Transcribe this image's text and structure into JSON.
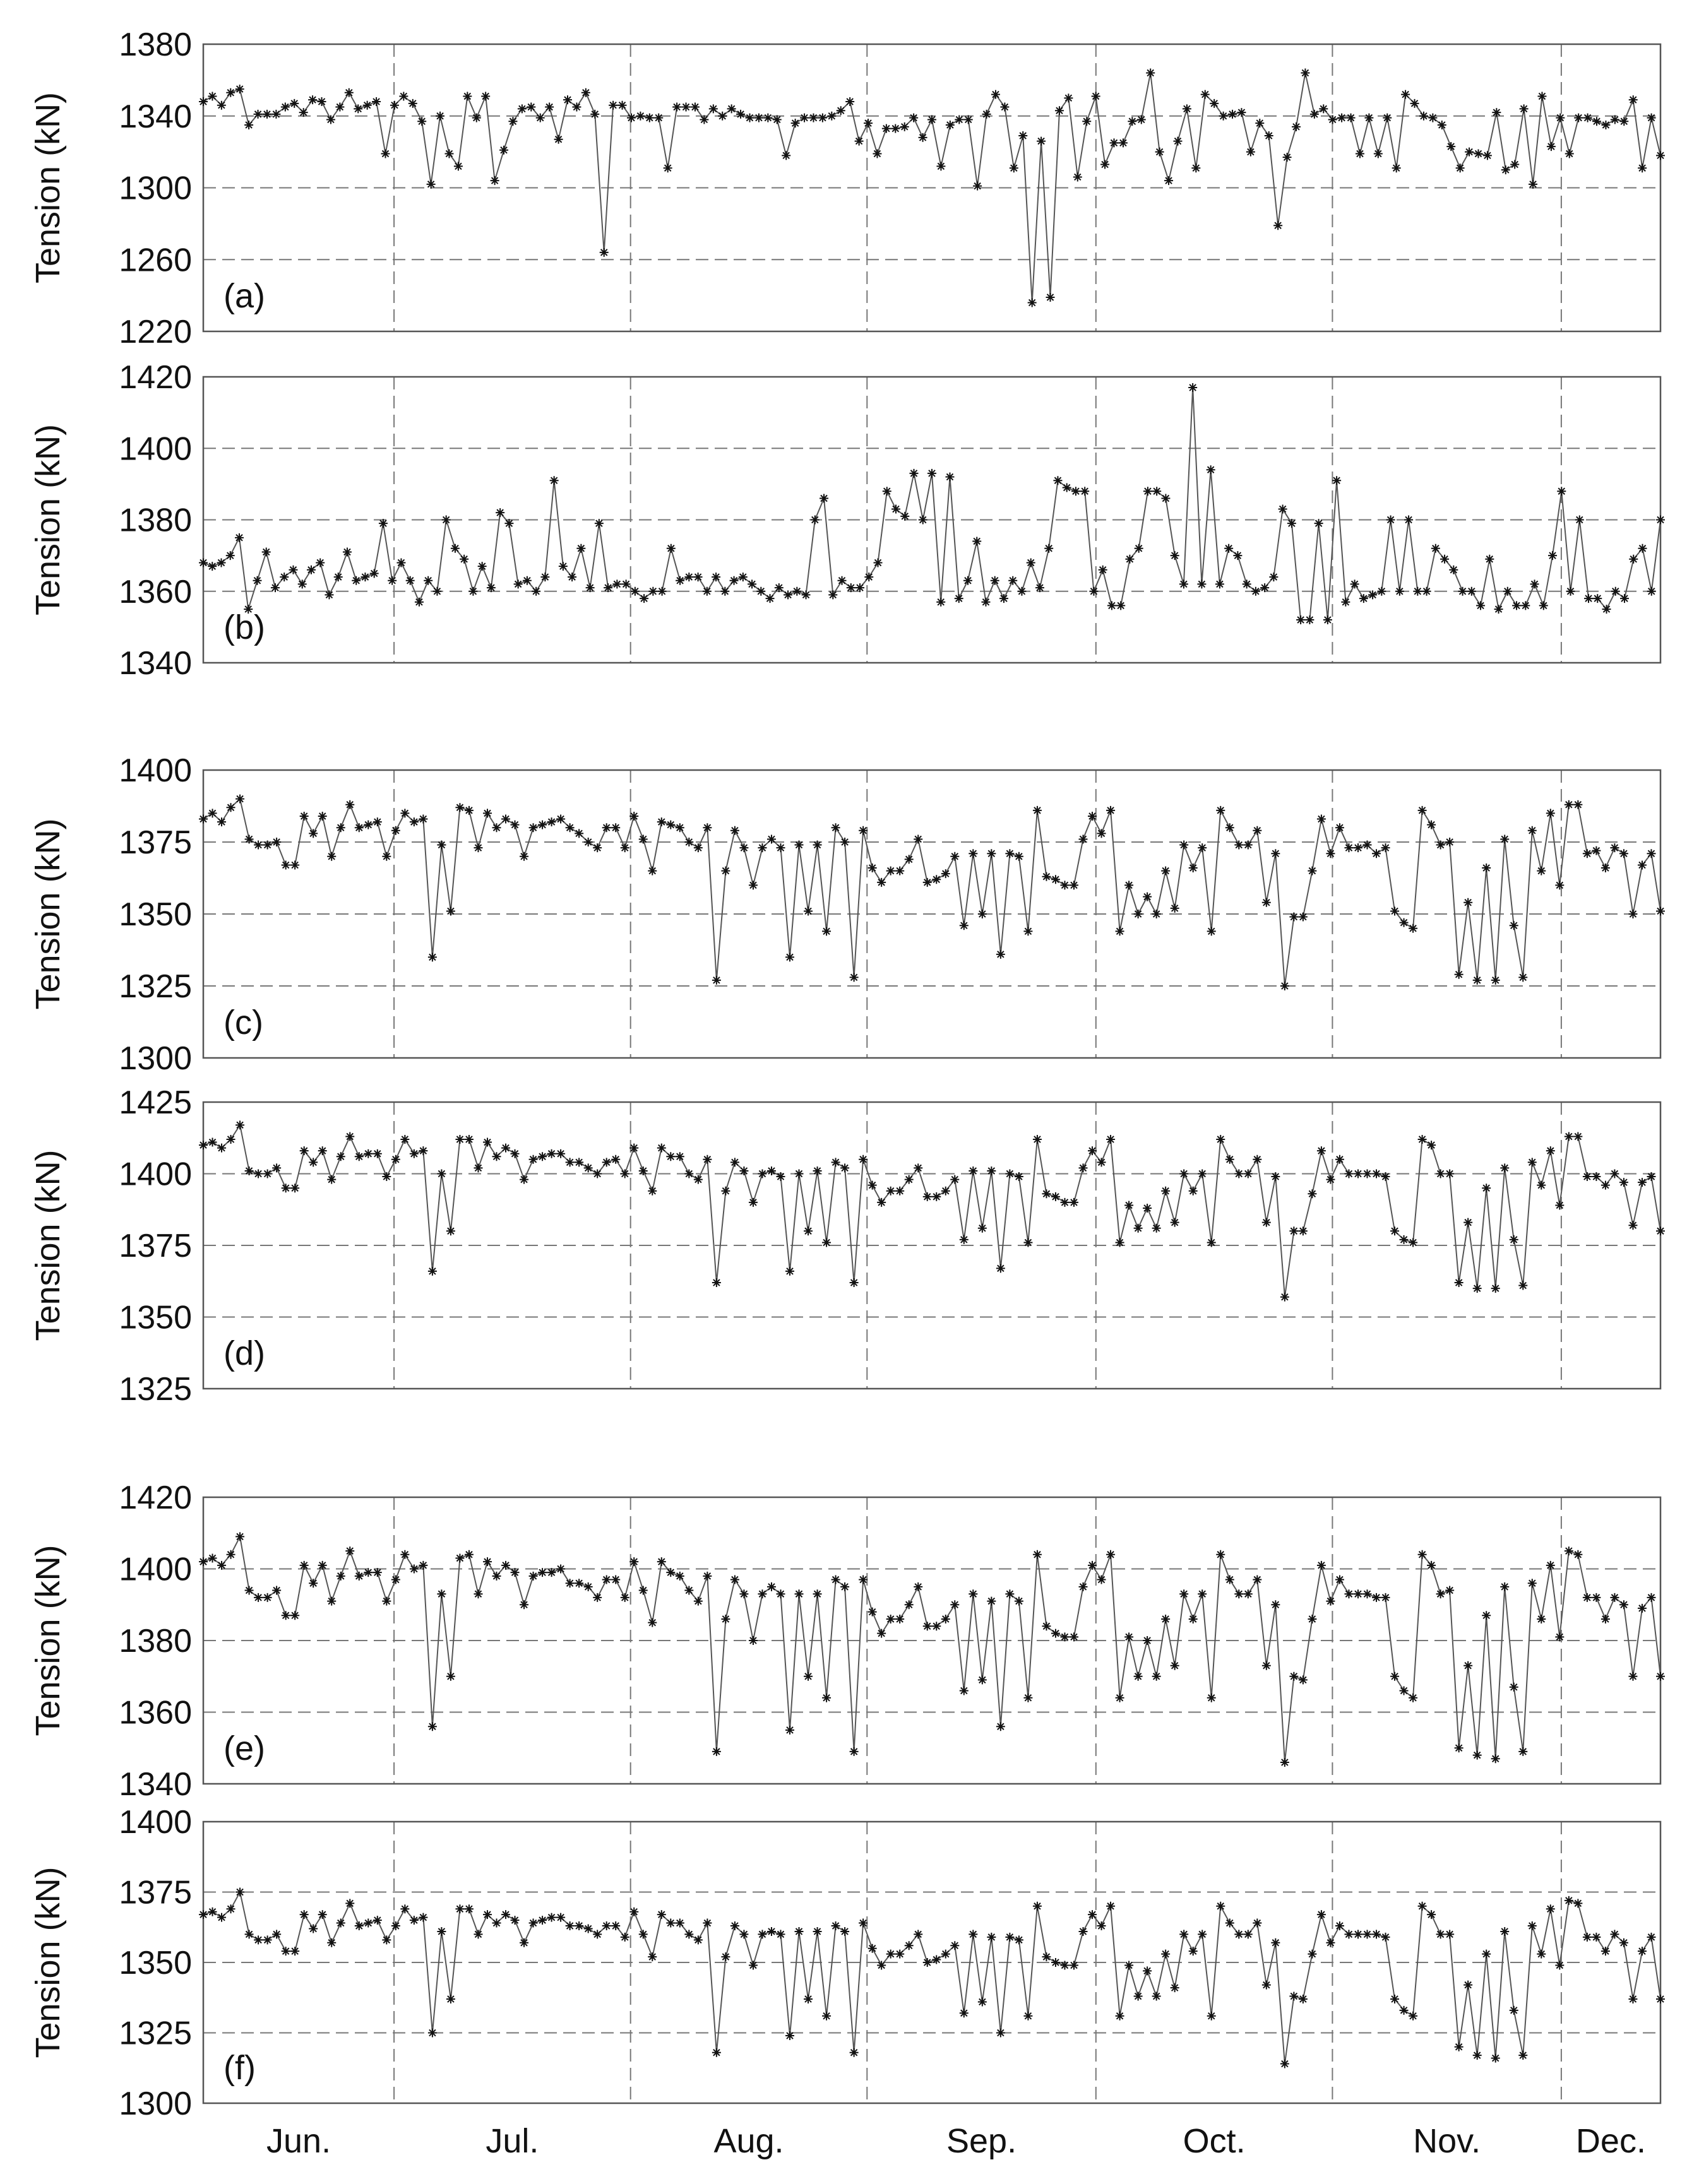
{
  "chart_data": [
    {
      "type": "line",
      "panel_label": "(a)",
      "ylabel": "Tension (kN)",
      "ylim": [
        1220,
        1380
      ],
      "yticks": [
        1220,
        1260,
        1300,
        1340,
        1380
      ],
      "grid": true,
      "marker": "asterisk",
      "values": [
        1348,
        1351,
        1346,
        1353,
        1355,
        1335,
        1341,
        1341,
        1341,
        1345,
        1347,
        1342,
        1349,
        1348,
        1338,
        1345,
        1353,
        1344,
        1346,
        1348,
        1319,
        1346,
        1351,
        1347,
        1337,
        1302,
        1340,
        1319,
        1312,
        1351,
        1339,
        1351,
        1304,
        1321,
        1337,
        1344,
        1345,
        1339,
        1345,
        1327,
        1349,
        1345,
        1353,
        1341,
        1264,
        1346,
        1346,
        1339,
        1340,
        1339,
        1339,
        1311,
        1345,
        1345,
        1345,
        1338,
        1344,
        1340,
        1344,
        1341,
        1339,
        1339,
        1339,
        1338,
        1318,
        1336,
        1339,
        1339,
        1339,
        1340,
        1343,
        1348,
        1326,
        1336,
        1319,
        1333,
        1333,
        1334,
        1339,
        1328,
        1338,
        1312,
        1335,
        1338,
        1338,
        1301,
        1341,
        1352,
        1345,
        1311,
        1329,
        1236,
        1326,
        1239,
        1343,
        1350,
        1306,
        1337,
        1351,
        1313,
        1325,
        1325,
        1337,
        1338,
        1364,
        1320,
        1304,
        1326,
        1344,
        1311,
        1352,
        1347,
        1340,
        1341,
        1342,
        1320,
        1336,
        1329,
        1279,
        1317,
        1334,
        1364,
        1341,
        1344,
        1338,
        1339,
        1339,
        1319,
        1339,
        1319,
        1339,
        1311,
        1352,
        1347,
        1340,
        1339,
        1335,
        1323,
        1311,
        1320,
        1319,
        1318,
        1342,
        1310,
        1313,
        1344,
        1302,
        1351,
        1323,
        1339,
        1319,
        1339,
        1339,
        1337,
        1335,
        1338,
        1337,
        1349,
        1311,
        1339,
        1318
      ]
    },
    {
      "type": "line",
      "panel_label": "(b)",
      "ylabel": "Tension (kN)",
      "ylim": [
        1340,
        1420
      ],
      "yticks": [
        1340,
        1360,
        1380,
        1400,
        1420
      ],
      "grid": true,
      "marker": "asterisk",
      "values": [
        1368,
        1367,
        1368,
        1370,
        1375,
        1355,
        1363,
        1371,
        1361,
        1364,
        1366,
        1362,
        1366,
        1368,
        1359,
        1364,
        1371,
        1363,
        1364,
        1365,
        1379,
        1363,
        1368,
        1363,
        1357,
        1363,
        1360,
        1380,
        1372,
        1369,
        1360,
        1367,
        1361,
        1382,
        1379,
        1362,
        1363,
        1360,
        1364,
        1391,
        1367,
        1364,
        1372,
        1361,
        1379,
        1361,
        1362,
        1362,
        1360,
        1358,
        1360,
        1360,
        1372,
        1363,
        1364,
        1364,
        1360,
        1364,
        1360,
        1363,
        1364,
        1362,
        1360,
        1358,
        1361,
        1359,
        1360,
        1359,
        1380,
        1386,
        1359,
        1363,
        1361,
        1361,
        1364,
        1368,
        1388,
        1383,
        1381,
        1393,
        1380,
        1393,
        1357,
        1392,
        1358,
        1363,
        1374,
        1357,
        1363,
        1358,
        1363,
        1360,
        1368,
        1361,
        1372,
        1391,
        1389,
        1388,
        1388,
        1360,
        1366,
        1356,
        1356,
        1369,
        1372,
        1388,
        1388,
        1386,
        1370,
        1362,
        1417,
        1362,
        1394,
        1362,
        1372,
        1370,
        1362,
        1360,
        1361,
        1364,
        1383,
        1379,
        1352,
        1352,
        1379,
        1352,
        1391,
        1357,
        1362,
        1358,
        1359,
        1360,
        1380,
        1360,
        1380,
        1360,
        1360,
        1372,
        1369,
        1366,
        1360,
        1360,
        1356,
        1369,
        1355,
        1360,
        1356,
        1356,
        1362,
        1356,
        1370,
        1388,
        1360,
        1380,
        1358,
        1358,
        1355,
        1360,
        1358,
        1369,
        1372,
        1360,
        1380
      ]
    },
    {
      "type": "line",
      "panel_label": "(c)",
      "ylabel": "Tension (kN)",
      "ylim": [
        1300,
        1400
      ],
      "yticks": [
        1300,
        1325,
        1350,
        1375,
        1400
      ],
      "grid": true,
      "marker": "asterisk",
      "values": [
        1383,
        1385,
        1382,
        1387,
        1390,
        1376,
        1374,
        1374,
        1375,
        1367,
        1367,
        1384,
        1378,
        1384,
        1370,
        1380,
        1388,
        1380,
        1381,
        1382,
        1370,
        1379,
        1385,
        1382,
        1383,
        1335,
        1374,
        1351,
        1387,
        1386,
        1373,
        1385,
        1380,
        1383,
        1381,
        1370,
        1380,
        1381,
        1382,
        1383,
        1380,
        1378,
        1375,
        1373,
        1380,
        1380,
        1373,
        1384,
        1376,
        1365,
        1382,
        1381,
        1380,
        1375,
        1373,
        1380,
        1327,
        1365,
        1379,
        1373,
        1360,
        1373,
        1376,
        1373,
        1335,
        1374,
        1351,
        1374,
        1344,
        1380,
        1375,
        1328,
        1379,
        1366,
        1361,
        1365,
        1365,
        1369,
        1376,
        1361,
        1362,
        1364,
        1370,
        1346,
        1371,
        1350,
        1371,
        1336,
        1371,
        1370,
        1344,
        1386,
        1363,
        1362,
        1360,
        1360,
        1376,
        1384,
        1378,
        1386,
        1344,
        1360,
        1350,
        1356,
        1350,
        1365,
        1352,
        1374,
        1366,
        1373,
        1344,
        1386,
        1380,
        1374,
        1374,
        1379,
        1354,
        1371,
        1325,
        1349,
        1349,
        1365,
        1383,
        1371,
        1380,
        1373,
        1373,
        1374,
        1371,
        1373,
        1351,
        1347,
        1345,
        1386,
        1381,
        1374,
        1375,
        1329,
        1354,
        1327,
        1366,
        1327,
        1376,
        1346,
        1328,
        1379,
        1365,
        1385,
        1360,
        1388,
        1388,
        1371,
        1372,
        1366,
        1373,
        1371,
        1350,
        1367,
        1371,
        1351
      ]
    },
    {
      "type": "line",
      "panel_label": "(d)",
      "ylabel": "Tension (kN)",
      "ylim": [
        1325,
        1425
      ],
      "yticks": [
        1325,
        1350,
        1375,
        1400,
        1425
      ],
      "grid": true,
      "marker": "asterisk",
      "values": [
        1410,
        1411,
        1409,
        1412,
        1417,
        1401,
        1400,
        1400,
        1402,
        1395,
        1395,
        1408,
        1404,
        1408,
        1398,
        1406,
        1413,
        1406,
        1407,
        1407,
        1399,
        1405,
        1412,
        1407,
        1408,
        1366,
        1400,
        1380,
        1412,
        1412,
        1402,
        1411,
        1406,
        1409,
        1407,
        1398,
        1405,
        1406,
        1407,
        1407,
        1404,
        1404,
        1402,
        1400,
        1404,
        1405,
        1400,
        1409,
        1401,
        1394,
        1409,
        1406,
        1406,
        1400,
        1398,
        1405,
        1362,
        1394,
        1404,
        1401,
        1390,
        1400,
        1401,
        1399,
        1366,
        1400,
        1380,
        1401,
        1376,
        1404,
        1402,
        1362,
        1405,
        1396,
        1390,
        1394,
        1394,
        1398,
        1402,
        1392,
        1392,
        1394,
        1398,
        1377,
        1401,
        1381,
        1401,
        1367,
        1400,
        1399,
        1376,
        1412,
        1393,
        1392,
        1390,
        1390,
        1402,
        1408,
        1404,
        1412,
        1376,
        1389,
        1381,
        1388,
        1381,
        1394,
        1383,
        1400,
        1394,
        1400,
        1376,
        1412,
        1405,
        1400,
        1400,
        1405,
        1383,
        1399,
        1357,
        1380,
        1380,
        1393,
        1408,
        1398,
        1405,
        1400,
        1400,
        1400,
        1400,
        1399,
        1380,
        1377,
        1376,
        1412,
        1410,
        1400,
        1400,
        1362,
        1383,
        1360,
        1395,
        1360,
        1402,
        1377,
        1361,
        1404,
        1396,
        1408,
        1389,
        1413,
        1413,
        1399,
        1399,
        1396,
        1400,
        1397,
        1382,
        1397,
        1399,
        1380
      ]
    },
    {
      "type": "line",
      "panel_label": "(e)",
      "ylabel": "Tension (kN)",
      "ylim": [
        1340,
        1420
      ],
      "yticks": [
        1340,
        1360,
        1380,
        1400,
        1420
      ],
      "grid": true,
      "marker": "asterisk",
      "values": [
        1402,
        1403,
        1401,
        1404,
        1409,
        1394,
        1392,
        1392,
        1394,
        1387,
        1387,
        1401,
        1396,
        1401,
        1391,
        1398,
        1405,
        1398,
        1399,
        1399,
        1391,
        1397,
        1404,
        1400,
        1401,
        1356,
        1393,
        1370,
        1403,
        1404,
        1393,
        1402,
        1398,
        1401,
        1399,
        1390,
        1398,
        1399,
        1399,
        1400,
        1396,
        1396,
        1395,
        1392,
        1397,
        1397,
        1392,
        1402,
        1394,
        1385,
        1402,
        1399,
        1398,
        1394,
        1391,
        1398,
        1349,
        1386,
        1397,
        1393,
        1380,
        1393,
        1395,
        1393,
        1355,
        1393,
        1370,
        1393,
        1364,
        1397,
        1395,
        1349,
        1397,
        1388,
        1382,
        1386,
        1386,
        1390,
        1395,
        1384,
        1384,
        1386,
        1390,
        1366,
        1393,
        1369,
        1391,
        1356,
        1393,
        1391,
        1364,
        1404,
        1384,
        1382,
        1381,
        1381,
        1395,
        1401,
        1397,
        1404,
        1364,
        1381,
        1370,
        1380,
        1370,
        1386,
        1373,
        1393,
        1386,
        1393,
        1364,
        1404,
        1397,
        1393,
        1393,
        1397,
        1373,
        1390,
        1346,
        1370,
        1369,
        1386,
        1401,
        1391,
        1397,
        1393,
        1393,
        1393,
        1392,
        1392,
        1370,
        1366,
        1364,
        1404,
        1401,
        1393,
        1394,
        1350,
        1373,
        1348,
        1387,
        1347,
        1395,
        1367,
        1349,
        1396,
        1386,
        1401,
        1381,
        1405,
        1404,
        1392,
        1392,
        1386,
        1392,
        1390,
        1370,
        1389,
        1392,
        1370
      ]
    },
    {
      "type": "line",
      "panel_label": "(f)",
      "ylabel": "Tension (kN)",
      "ylim": [
        1300,
        1400
      ],
      "yticks": [
        1300,
        1325,
        1350,
        1375,
        1400
      ],
      "grid": true,
      "marker": "asterisk",
      "values": [
        1367,
        1368,
        1366,
        1369,
        1375,
        1360,
        1358,
        1358,
        1360,
        1354,
        1354,
        1367,
        1362,
        1367,
        1357,
        1364,
        1371,
        1363,
        1364,
        1365,
        1358,
        1363,
        1369,
        1365,
        1366,
        1325,
        1361,
        1337,
        1369,
        1369,
        1360,
        1367,
        1364,
        1367,
        1365,
        1357,
        1364,
        1365,
        1366,
        1366,
        1363,
        1363,
        1362,
        1360,
        1363,
        1363,
        1359,
        1368,
        1360,
        1352,
        1367,
        1364,
        1364,
        1360,
        1358,
        1364,
        1318,
        1352,
        1363,
        1360,
        1349,
        1360,
        1361,
        1360,
        1324,
        1361,
        1337,
        1361,
        1331,
        1363,
        1361,
        1318,
        1364,
        1355,
        1349,
        1353,
        1353,
        1356,
        1360,
        1350,
        1351,
        1353,
        1356,
        1332,
        1360,
        1336,
        1359,
        1325,
        1359,
        1358,
        1331,
        1370,
        1352,
        1350,
        1349,
        1349,
        1361,
        1367,
        1363,
        1370,
        1331,
        1349,
        1338,
        1347,
        1338,
        1353,
        1341,
        1360,
        1354,
        1360,
        1331,
        1370,
        1364,
        1360,
        1360,
        1364,
        1342,
        1357,
        1314,
        1338,
        1337,
        1353,
        1367,
        1357,
        1363,
        1360,
        1360,
        1360,
        1360,
        1359,
        1337,
        1333,
        1331,
        1370,
        1367,
        1360,
        1360,
        1320,
        1342,
        1317,
        1353,
        1316,
        1361,
        1333,
        1317,
        1363,
        1353,
        1369,
        1349,
        1372,
        1371,
        1359,
        1359,
        1354,
        1360,
        1357,
        1337,
        1354,
        1359,
        1337
      ]
    }
  ],
  "x_axis": {
    "months": [
      "Jun.",
      "Jul.",
      "Aug.",
      "Sep.",
      "Oct.",
      "Nov.",
      "Dec."
    ],
    "month_lengths_days": [
      30,
      31,
      31,
      30,
      31,
      30,
      31
    ],
    "start_day": 5,
    "end_day": 196
  },
  "colors": {
    "line": "#555555",
    "marker": "#111111",
    "grid": "#777777",
    "frame": "#555555"
  }
}
